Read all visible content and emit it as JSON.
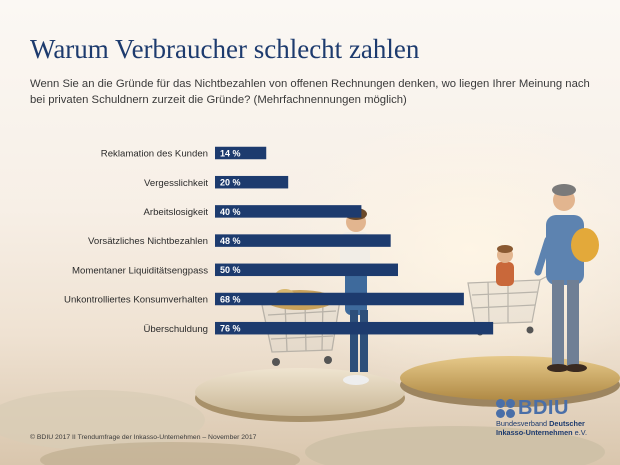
{
  "title": "Warum Verbraucher schlecht zahlen",
  "subtitle": "Wenn Sie an die Gründe für das Nichtbezahlen von offenen Rechnungen denken, wo liegen Ihrer Meinung nach bei privaten Schuldnern zurzeit die Gründe? (Mehrfachnennungen möglich)",
  "footer": "© BDIU 2017  II  Trendumfrage der Inkasso-Unternehmen – November 2017",
  "logo": {
    "wordmark": "BDIU",
    "line1_prefix": "Bundesverband ",
    "line1_bold": "Deutscher",
    "line2_bold": "Inkasso-Unternehmen",
    "line2_suffix": " e.V."
  },
  "colors": {
    "bar": "#1d3b6e",
    "title": "#1d3b6e",
    "label_text": "#ffffff",
    "logo": "#4a6fa8"
  },
  "chart_data": {
    "type": "bar",
    "orientation": "horizontal",
    "categories": [
      "Reklamation des Kunden",
      "Vergesslichkeit",
      "Arbeitslosigkeit",
      "Vorsätzliches Nichtbezahlen",
      "Momentaner Liquiditätsengpass",
      "Unkontrolliertes Konsumverhalten",
      "Überschuldung"
    ],
    "values": [
      14,
      20,
      40,
      48,
      50,
      68,
      76
    ],
    "value_labels": [
      "14 %",
      "20 %",
      "40 %",
      "48 %",
      "50 %",
      "68 %",
      "76 %"
    ],
    "unit": "%",
    "xlim": [
      0,
      100
    ],
    "grid": false,
    "legend": "none"
  }
}
